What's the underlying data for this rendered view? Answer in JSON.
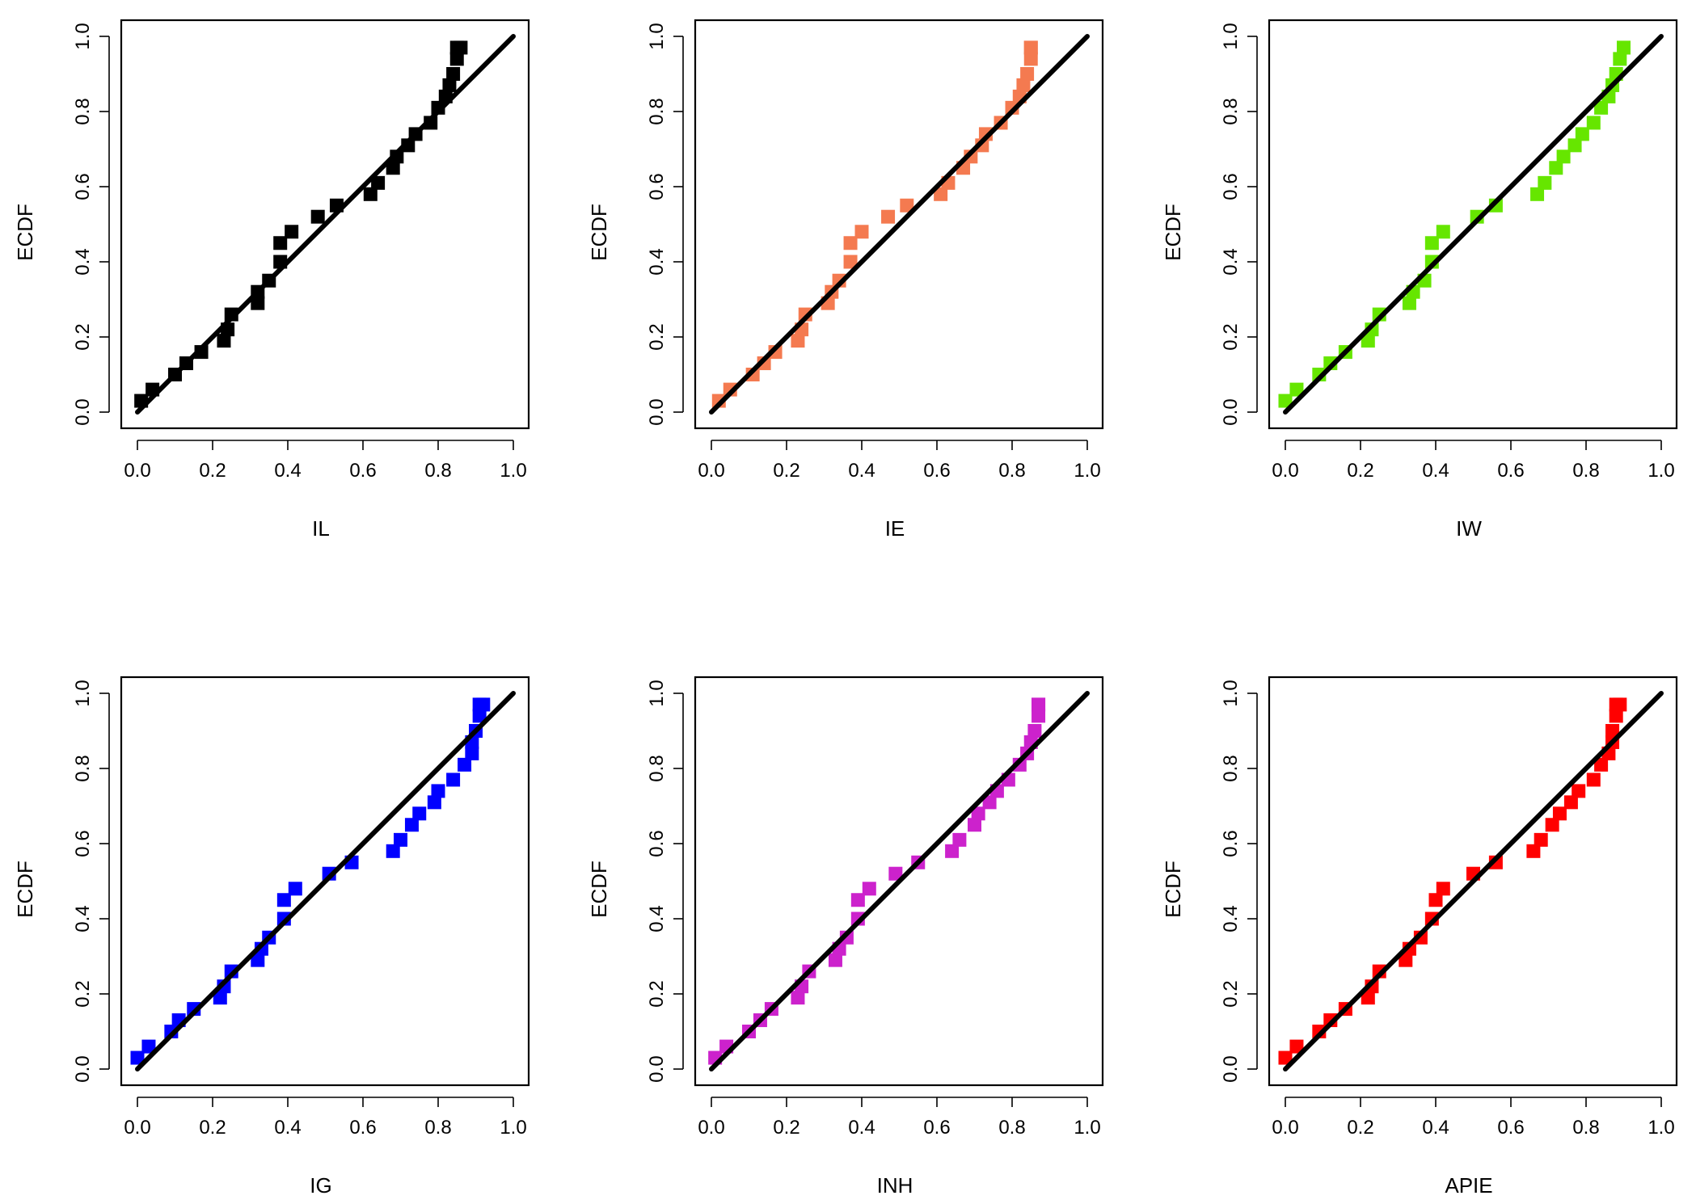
{
  "figure": {
    "layout": "2 rows x 3 columns of PP plots"
  },
  "chart_data": [
    {
      "type": "scatter",
      "xlabel": "IL",
      "ylabel": "ECDF",
      "color": "#000000",
      "xlim": [
        0,
        1
      ],
      "ylim": [
        0,
        1
      ],
      "x_ticks": [
        "0.0",
        "0.2",
        "0.4",
        "0.6",
        "0.8",
        "1.0"
      ],
      "y_ticks": [
        "0.0",
        "0.2",
        "0.4",
        "0.6",
        "0.8",
        "1.0"
      ],
      "reference_line": [
        [
          0,
          0
        ],
        [
          1,
          1
        ]
      ],
      "x": [
        0.01,
        0.04,
        0.1,
        0.13,
        0.17,
        0.23,
        0.24,
        0.25,
        0.32,
        0.32,
        0.35,
        0.38,
        0.38,
        0.41,
        0.48,
        0.53,
        0.62,
        0.64,
        0.68,
        0.69,
        0.72,
        0.74,
        0.78,
        0.8,
        0.82,
        0.83,
        0.84,
        0.85,
        0.85,
        0.86
      ],
      "y": [
        0.03,
        0.06,
        0.1,
        0.13,
        0.16,
        0.19,
        0.22,
        0.26,
        0.29,
        0.32,
        0.35,
        0.4,
        0.45,
        0.48,
        0.52,
        0.55,
        0.58,
        0.61,
        0.65,
        0.68,
        0.71,
        0.74,
        0.77,
        0.81,
        0.84,
        0.87,
        0.9,
        0.94,
        0.97,
        0.97
      ]
    },
    {
      "type": "scatter",
      "xlabel": "IE",
      "ylabel": "ECDF",
      "color": "#F47A50",
      "xlim": [
        0,
        1
      ],
      "ylim": [
        0,
        1
      ],
      "x_ticks": [
        "0.0",
        "0.2",
        "0.4",
        "0.6",
        "0.8",
        "1.0"
      ],
      "y_ticks": [
        "0.0",
        "0.2",
        "0.4",
        "0.6",
        "0.8",
        "1.0"
      ],
      "reference_line": [
        [
          0,
          0
        ],
        [
          1,
          1
        ]
      ],
      "x": [
        0.02,
        0.05,
        0.11,
        0.14,
        0.17,
        0.23,
        0.24,
        0.25,
        0.31,
        0.32,
        0.34,
        0.37,
        0.37,
        0.4,
        0.47,
        0.52,
        0.61,
        0.63,
        0.67,
        0.69,
        0.72,
        0.73,
        0.77,
        0.8,
        0.82,
        0.83,
        0.84,
        0.85,
        0.85,
        0.85
      ],
      "y": [
        0.03,
        0.06,
        0.1,
        0.13,
        0.16,
        0.19,
        0.22,
        0.26,
        0.29,
        0.32,
        0.35,
        0.4,
        0.45,
        0.48,
        0.52,
        0.55,
        0.58,
        0.61,
        0.65,
        0.68,
        0.71,
        0.74,
        0.77,
        0.81,
        0.84,
        0.87,
        0.9,
        0.94,
        0.97,
        0.97
      ]
    },
    {
      "type": "scatter",
      "xlabel": "IW",
      "ylabel": "ECDF",
      "color": "#66E600",
      "xlim": [
        0,
        1
      ],
      "ylim": [
        0,
        1
      ],
      "x_ticks": [
        "0.0",
        "0.2",
        "0.4",
        "0.6",
        "0.8",
        "1.0"
      ],
      "y_ticks": [
        "0.0",
        "0.2",
        "0.4",
        "0.6",
        "0.8",
        "1.0"
      ],
      "reference_line": [
        [
          0,
          0
        ],
        [
          1,
          1
        ]
      ],
      "x": [
        0.0,
        0.03,
        0.09,
        0.12,
        0.16,
        0.22,
        0.23,
        0.25,
        0.33,
        0.34,
        0.37,
        0.39,
        0.39,
        0.42,
        0.51,
        0.56,
        0.67,
        0.69,
        0.72,
        0.74,
        0.77,
        0.79,
        0.82,
        0.84,
        0.86,
        0.87,
        0.88,
        0.89,
        0.9,
        0.9
      ],
      "y": [
        0.03,
        0.06,
        0.1,
        0.13,
        0.16,
        0.19,
        0.22,
        0.26,
        0.29,
        0.32,
        0.35,
        0.4,
        0.45,
        0.48,
        0.52,
        0.55,
        0.58,
        0.61,
        0.65,
        0.68,
        0.71,
        0.74,
        0.77,
        0.81,
        0.84,
        0.87,
        0.9,
        0.94,
        0.97,
        0.97
      ]
    },
    {
      "type": "scatter",
      "xlabel": "IG",
      "ylabel": "ECDF",
      "color": "#0000FF",
      "xlim": [
        0,
        1
      ],
      "ylim": [
        0,
        1
      ],
      "x_ticks": [
        "0.0",
        "0.2",
        "0.4",
        "0.6",
        "0.8",
        "1.0"
      ],
      "y_ticks": [
        "0.0",
        "0.2",
        "0.4",
        "0.6",
        "0.8",
        "1.0"
      ],
      "reference_line": [
        [
          0,
          0
        ],
        [
          1,
          1
        ]
      ],
      "x": [
        0.0,
        0.03,
        0.09,
        0.11,
        0.15,
        0.22,
        0.23,
        0.25,
        0.32,
        0.33,
        0.35,
        0.39,
        0.39,
        0.42,
        0.51,
        0.57,
        0.68,
        0.7,
        0.73,
        0.75,
        0.79,
        0.8,
        0.84,
        0.87,
        0.89,
        0.89,
        0.9,
        0.91,
        0.91,
        0.92
      ],
      "y": [
        0.03,
        0.06,
        0.1,
        0.13,
        0.16,
        0.19,
        0.22,
        0.26,
        0.29,
        0.32,
        0.35,
        0.4,
        0.45,
        0.48,
        0.52,
        0.55,
        0.58,
        0.61,
        0.65,
        0.68,
        0.71,
        0.74,
        0.77,
        0.81,
        0.84,
        0.87,
        0.9,
        0.94,
        0.97,
        0.97
      ]
    },
    {
      "type": "scatter",
      "xlabel": "INH",
      "ylabel": "ECDF",
      "color": "#CC22CC",
      "xlim": [
        0,
        1
      ],
      "ylim": [
        0,
        1
      ],
      "x_ticks": [
        "0.0",
        "0.2",
        "0.4",
        "0.6",
        "0.8",
        "1.0"
      ],
      "y_ticks": [
        "0.0",
        "0.2",
        "0.4",
        "0.6",
        "0.8",
        "1.0"
      ],
      "reference_line": [
        [
          0,
          0
        ],
        [
          1,
          1
        ]
      ],
      "x": [
        0.01,
        0.04,
        0.1,
        0.13,
        0.16,
        0.23,
        0.24,
        0.26,
        0.33,
        0.34,
        0.36,
        0.39,
        0.39,
        0.42,
        0.49,
        0.55,
        0.64,
        0.66,
        0.7,
        0.71,
        0.74,
        0.76,
        0.79,
        0.82,
        0.84,
        0.85,
        0.86,
        0.87,
        0.87,
        0.87
      ],
      "y": [
        0.03,
        0.06,
        0.1,
        0.13,
        0.16,
        0.19,
        0.22,
        0.26,
        0.29,
        0.32,
        0.35,
        0.4,
        0.45,
        0.48,
        0.52,
        0.55,
        0.58,
        0.61,
        0.65,
        0.68,
        0.71,
        0.74,
        0.77,
        0.81,
        0.84,
        0.87,
        0.9,
        0.94,
        0.97,
        0.97
      ]
    },
    {
      "type": "scatter",
      "xlabel": "APIE",
      "ylabel": "ECDF",
      "color": "#FF0000",
      "xlim": [
        0,
        1
      ],
      "ylim": [
        0,
        1
      ],
      "x_ticks": [
        "0.0",
        "0.2",
        "0.4",
        "0.6",
        "0.8",
        "1.0"
      ],
      "y_ticks": [
        "0.0",
        "0.2",
        "0.4",
        "0.6",
        "0.8",
        "1.0"
      ],
      "reference_line": [
        [
          0,
          0
        ],
        [
          1,
          1
        ]
      ],
      "x": [
        0.0,
        0.03,
        0.09,
        0.12,
        0.16,
        0.22,
        0.23,
        0.25,
        0.32,
        0.33,
        0.36,
        0.39,
        0.4,
        0.42,
        0.5,
        0.56,
        0.66,
        0.68,
        0.71,
        0.73,
        0.76,
        0.78,
        0.82,
        0.84,
        0.86,
        0.87,
        0.87,
        0.88,
        0.88,
        0.89
      ],
      "y": [
        0.03,
        0.06,
        0.1,
        0.13,
        0.16,
        0.19,
        0.22,
        0.26,
        0.29,
        0.32,
        0.35,
        0.4,
        0.45,
        0.48,
        0.52,
        0.55,
        0.58,
        0.61,
        0.65,
        0.68,
        0.71,
        0.74,
        0.77,
        0.81,
        0.84,
        0.87,
        0.9,
        0.94,
        0.97,
        0.97
      ]
    }
  ]
}
